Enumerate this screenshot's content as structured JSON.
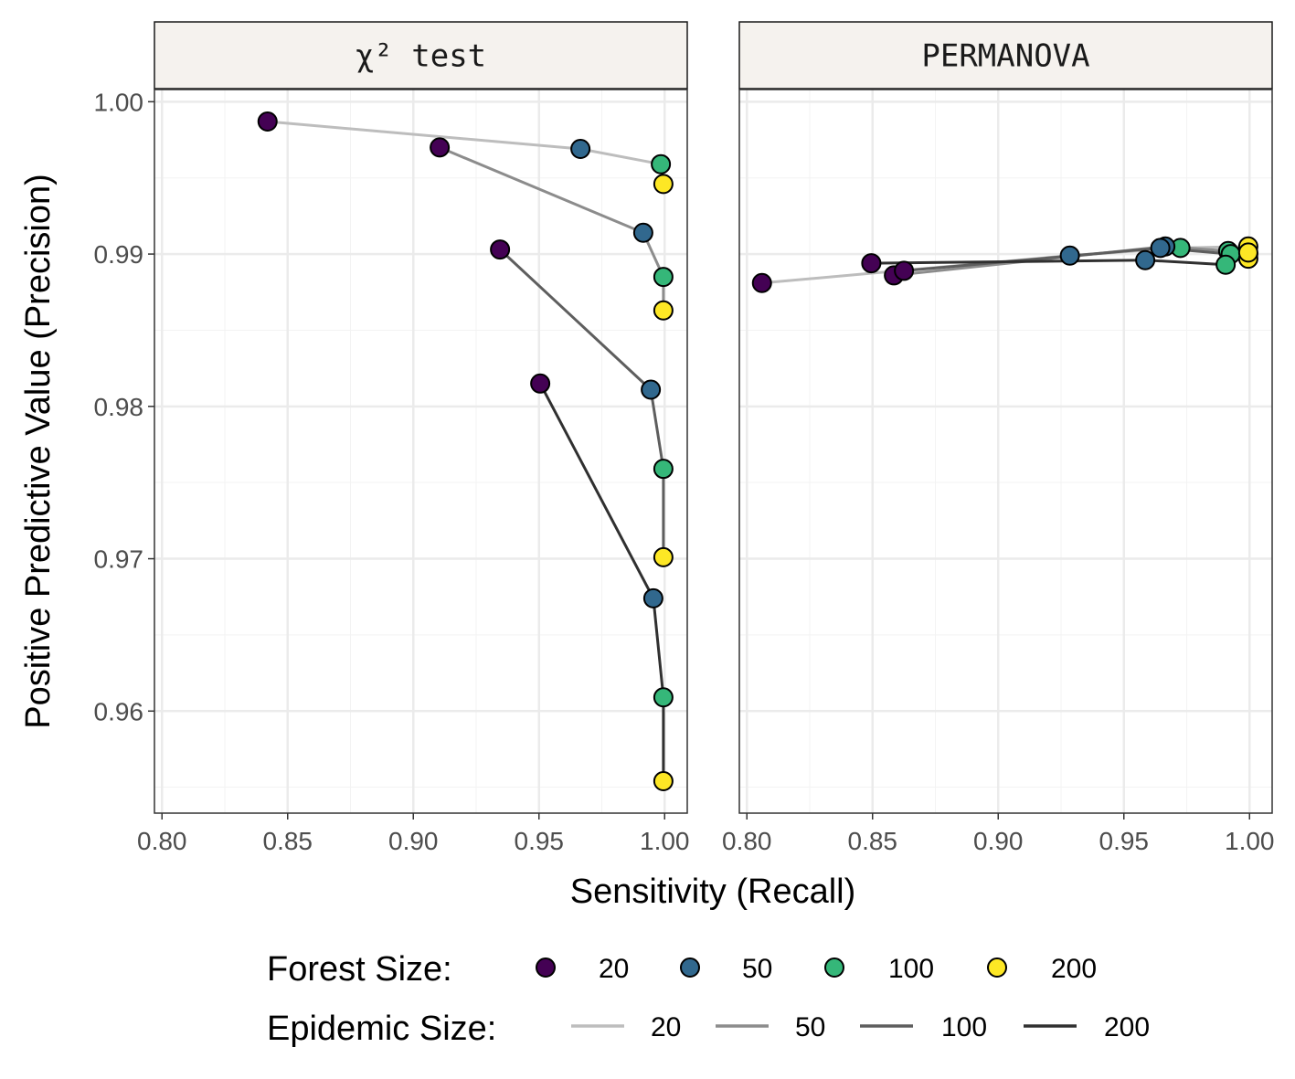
{
  "chart_data": {
    "type": "line",
    "xlabel": "Sensitivity (Recall)",
    "ylabel": "Positive Predictive Value (Precision)",
    "xlim": [
      0.797,
      1.009
    ],
    "ylim": [
      0.9533,
      1.0008
    ],
    "xticks": [
      "0.80",
      "0.85",
      "0.90",
      "0.95",
      "1.00"
    ],
    "yticks": [
      "0.96",
      "0.97",
      "0.98",
      "0.99",
      "1.00"
    ],
    "grid": true,
    "colors": {
      "forest": {
        "20": "#440154",
        "50": "#31688e",
        "100": "#35b779",
        "200": "#fde725"
      },
      "epidemic": {
        "20": "#bdbdbd",
        "50": "#8c8c8c",
        "100": "#5e5e5e",
        "200": "#303030"
      }
    },
    "panels": [
      {
        "title": "χ² test",
        "series": [
          {
            "epidemic": "20",
            "points": [
              {
                "forest": "20",
                "x": 0.842,
                "y": 0.9987
              },
              {
                "forest": "50",
                "x": 0.9665,
                "y": 0.9969
              },
              {
                "forest": "100",
                "x": 0.9985,
                "y": 0.9959
              },
              {
                "forest": "200",
                "x": 0.9995,
                "y": 0.9946
              }
            ]
          },
          {
            "epidemic": "50",
            "points": [
              {
                "forest": "20",
                "x": 0.9105,
                "y": 0.997
              },
              {
                "forest": "50",
                "x": 0.9915,
                "y": 0.9914
              },
              {
                "forest": "100",
                "x": 0.9995,
                "y": 0.9885
              },
              {
                "forest": "200",
                "x": 0.9995,
                "y": 0.9863
              }
            ]
          },
          {
            "epidemic": "100",
            "points": [
              {
                "forest": "20",
                "x": 0.9345,
                "y": 0.9903
              },
              {
                "forest": "50",
                "x": 0.9945,
                "y": 0.9811
              },
              {
                "forest": "100",
                "x": 0.9995,
                "y": 0.9759
              },
              {
                "forest": "200",
                "x": 0.9995,
                "y": 0.9701
              }
            ]
          },
          {
            "epidemic": "200",
            "points": [
              {
                "forest": "20",
                "x": 0.9505,
                "y": 0.9815
              },
              {
                "forest": "50",
                "x": 0.9955,
                "y": 0.9674
              },
              {
                "forest": "100",
                "x": 0.9995,
                "y": 0.9609
              },
              {
                "forest": "200",
                "x": 0.9995,
                "y": 0.9554
              }
            ]
          }
        ]
      },
      {
        "title": "PERMANOVA",
        "series": [
          {
            "epidemic": "20",
            "points": [
              {
                "forest": "20",
                "x": 0.806,
                "y": 0.9881
              },
              {
                "forest": "50",
                "x": 0.9285,
                "y": 0.9899
              },
              {
                "forest": "100",
                "x": 0.9725,
                "y": 0.9904
              },
              {
                "forest": "200",
                "x": 0.9995,
                "y": 0.9905
              }
            ]
          },
          {
            "epidemic": "50",
            "points": [
              {
                "forest": "20",
                "x": 0.8585,
                "y": 0.9886
              },
              {
                "forest": "50",
                "x": 0.9665,
                "y": 0.9905
              },
              {
                "forest": "100",
                "x": 0.9915,
                "y": 0.9902
              },
              {
                "forest": "200",
                "x": 0.9995,
                "y": 0.99
              }
            ]
          },
          {
            "epidemic": "100",
            "points": [
              {
                "forest": "20",
                "x": 0.8625,
                "y": 0.9889
              },
              {
                "forest": "50",
                "x": 0.9645,
                "y": 0.9904
              },
              {
                "forest": "100",
                "x": 0.9925,
                "y": 0.99
              },
              {
                "forest": "200",
                "x": 0.9995,
                "y": 0.9897
              }
            ]
          },
          {
            "epidemic": "200",
            "points": [
              {
                "forest": "20",
                "x": 0.8495,
                "y": 0.9894
              },
              {
                "forest": "50",
                "x": 0.9585,
                "y": 0.9896
              },
              {
                "forest": "100",
                "x": 0.9905,
                "y": 0.9893
              },
              {
                "forest": "200",
                "x": 0.9995,
                "y": 0.9901
              }
            ]
          }
        ]
      }
    ],
    "legend": {
      "position": "bottom",
      "forest": {
        "title": "Forest Size:",
        "items": [
          "20",
          "50",
          "100",
          "200"
        ]
      },
      "epidemic": {
        "title": "Epidemic Size:",
        "items": [
          "20",
          "50",
          "100",
          "200"
        ]
      }
    }
  }
}
